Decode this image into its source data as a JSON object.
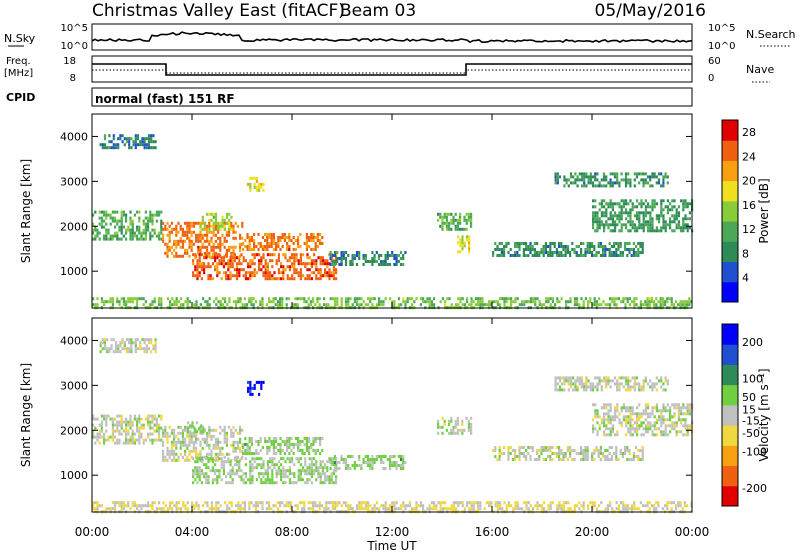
{
  "header": {
    "station": "Christmas Valley East (fitACF)",
    "beam": "Beam 03",
    "date": "05/May/2016"
  },
  "mini_panels": {
    "nsky_label": "N.Sky",
    "nsearch_label": "N.Search",
    "nsky_ticks": [
      "10^5",
      "10^0"
    ],
    "freq_label_1": "Freq.",
    "freq_label_2": "[MHz]",
    "freq_ticks": [
      "18",
      "8"
    ],
    "nave_label": "Nave",
    "nave_ticks": [
      "60",
      "0"
    ],
    "cpid_label": "CPID",
    "cpid_value": "normal (fast) 151 RF"
  },
  "chart_data": [
    {
      "type": "heatmap",
      "title": "",
      "xlabel": "Time UT",
      "ylabel": "Slant Range [km]",
      "x_ticks": [
        "00:00",
        "04:00",
        "08:00",
        "12:00",
        "16:00",
        "20:00",
        "00:00"
      ],
      "xlim_hours": [
        0,
        24
      ],
      "y_ticks": [
        1000,
        2000,
        3000,
        4000
      ],
      "ylim": [
        180,
        4500
      ],
      "colorbar": {
        "label": "Power [dB]",
        "ticks": [
          4,
          8,
          12,
          16,
          20,
          24,
          28
        ],
        "range": [
          0,
          30
        ],
        "colors": [
          "#0000ff",
          "#2050d0",
          "#2e8b57",
          "#4aa858",
          "#88cc3a",
          "#f0e020",
          "#f8a010",
          "#f06010",
          "#e00000"
        ]
      },
      "regions": [
        {
          "t": [
            0.0,
            2.8
          ],
          "r": [
            1700,
            2350
          ],
          "value": 12
        },
        {
          "t": [
            0.3,
            2.5
          ],
          "r": [
            3750,
            4050
          ],
          "value": 8
        },
        {
          "t": [
            2.8,
            6.0
          ],
          "r": [
            1300,
            2100
          ],
          "value": 24
        },
        {
          "t": [
            4.0,
            9.8
          ],
          "r": [
            850,
            1400
          ],
          "value": 25
        },
        {
          "t": [
            6.0,
            9.2
          ],
          "r": [
            1450,
            1850
          ],
          "value": 24
        },
        {
          "t": [
            6.2,
            6.9
          ],
          "r": [
            2800,
            3100
          ],
          "value": 18
        },
        {
          "t": [
            4.3,
            5.6
          ],
          "r": [
            1950,
            2300
          ],
          "value": 16
        },
        {
          "t": [
            9.5,
            12.5
          ],
          "r": [
            1150,
            1450
          ],
          "value": 8
        },
        {
          "t": [
            13.8,
            15.2
          ],
          "r": [
            1900,
            2300
          ],
          "value": 12
        },
        {
          "t": [
            14.6,
            15.1
          ],
          "r": [
            1400,
            1800
          ],
          "value": 18
        },
        {
          "t": [
            16.0,
            22.0
          ],
          "r": [
            1350,
            1650
          ],
          "value": 9
        },
        {
          "t": [
            18.5,
            23.0
          ],
          "r": [
            2900,
            3200
          ],
          "value": 9
        },
        {
          "t": [
            20.0,
            24.0
          ],
          "r": [
            1900,
            2600
          ],
          "value": 10
        },
        {
          "t": [
            0.0,
            24.0
          ],
          "r": [
            180,
            420
          ],
          "value": 14
        }
      ]
    },
    {
      "type": "heatmap",
      "title": "",
      "xlabel": "Time UT",
      "ylabel": "Slant Range [km]",
      "x_ticks": [
        "00:00",
        "04:00",
        "08:00",
        "12:00",
        "16:00",
        "20:00",
        "00:00"
      ],
      "xlim_hours": [
        0,
        24
      ],
      "y_ticks": [
        1000,
        2000,
        3000,
        4000
      ],
      "ylim": [
        180,
        4500
      ],
      "colorbar": {
        "label": "Velocity [m s⁻¹]",
        "ticks": [
          200,
          100,
          50,
          15,
          -15,
          -50,
          -100,
          -200
        ],
        "range": [
          -250,
          250
        ],
        "colors": [
          "#e00000",
          "#f06010",
          "#f8a010",
          "#f0d840",
          "#c0c0c0",
          "#70d040",
          "#2e8b57",
          "#2050d0",
          "#0000ff"
        ]
      },
      "regions": [
        {
          "t": [
            0.0,
            2.8
          ],
          "r": [
            1700,
            2350
          ],
          "value": 0
        },
        {
          "t": [
            0.3,
            2.5
          ],
          "r": [
            3750,
            4050
          ],
          "value": 0
        },
        {
          "t": [
            2.8,
            6.0
          ],
          "r": [
            1300,
            2100
          ],
          "value": 0
        },
        {
          "t": [
            4.0,
            9.8
          ],
          "r": [
            850,
            1400
          ],
          "value": 30
        },
        {
          "t": [
            6.0,
            9.2
          ],
          "r": [
            1450,
            1850
          ],
          "value": 40
        },
        {
          "t": [
            6.2,
            6.9
          ],
          "r": [
            2800,
            3100
          ],
          "value": 220
        },
        {
          "t": [
            3.8,
            4.5
          ],
          "r": [
            1950,
            2200
          ],
          "value": 40
        },
        {
          "t": [
            9.5,
            12.5
          ],
          "r": [
            1150,
            1450
          ],
          "value": 40
        },
        {
          "t": [
            13.8,
            15.2
          ],
          "r": [
            1900,
            2300
          ],
          "value": 0
        },
        {
          "t": [
            16.0,
            22.0
          ],
          "r": [
            1350,
            1650
          ],
          "value": 0
        },
        {
          "t": [
            18.5,
            23.0
          ],
          "r": [
            2900,
            3200
          ],
          "value": 0
        },
        {
          "t": [
            20.0,
            24.0
          ],
          "r": [
            1900,
            2600
          ],
          "value": 0
        },
        {
          "t": [
            0.0,
            24.0
          ],
          "r": [
            180,
            420
          ],
          "value": -30
        }
      ]
    }
  ]
}
